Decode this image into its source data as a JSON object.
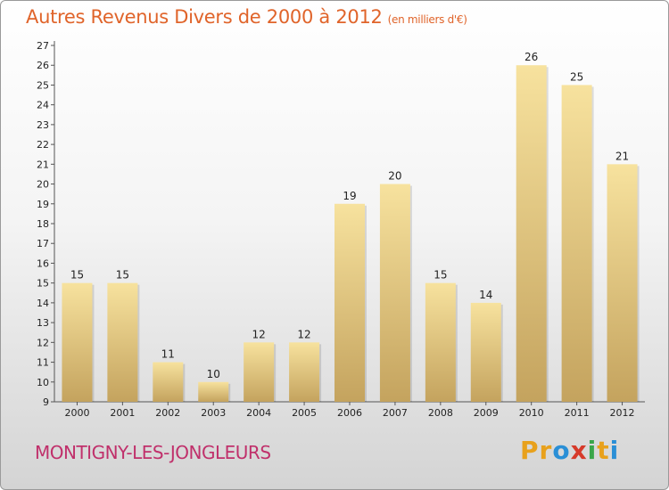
{
  "title": "Autres Revenus Divers de 2000 à 2012",
  "subtitle": "(en milliers d'€)",
  "town": "MONTIGNY-LES-JONGLEURS",
  "logo": {
    "letters": [
      "P",
      "r",
      "o",
      "x",
      "i",
      "t",
      "i"
    ],
    "colors": [
      "#e8a11c",
      "#e8a11c",
      "#2a8fd6",
      "#d63a2a",
      "#3aa64a",
      "#e8a11c",
      "#2a8fd6"
    ]
  },
  "colors": {
    "title": "#e0642a",
    "town": "#c0306b",
    "bar_light": "#f7e29e",
    "bar_dark": "#c4a35e"
  },
  "chart_data": {
    "type": "bar",
    "title": "Autres Revenus Divers de 2000 à 2012",
    "subtitle": "(en milliers d'€)",
    "categories": [
      "2000",
      "2001",
      "2002",
      "2003",
      "2004",
      "2005",
      "2006",
      "2007",
      "2008",
      "2009",
      "2010",
      "2011",
      "2012"
    ],
    "values": [
      15,
      15,
      11,
      10,
      12,
      12,
      19,
      20,
      15,
      14,
      26,
      25,
      21
    ],
    "ylim": [
      9,
      27
    ],
    "yticks": [
      9,
      10,
      11,
      12,
      13,
      14,
      15,
      16,
      17,
      18,
      19,
      20,
      21,
      22,
      23,
      24,
      25,
      26,
      27
    ],
    "grid": false,
    "data_labels": true
  }
}
